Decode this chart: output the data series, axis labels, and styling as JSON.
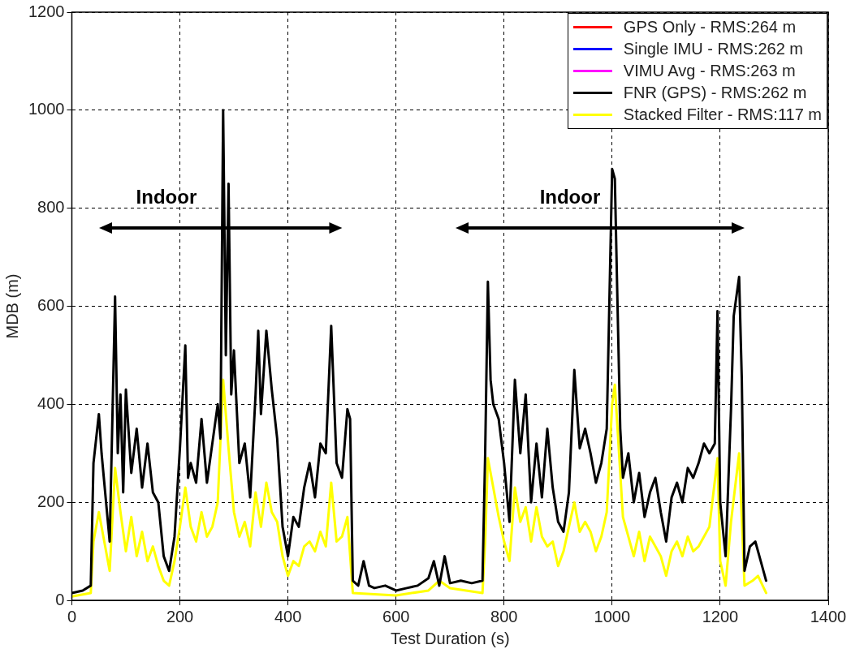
{
  "chart_data": {
    "type": "line",
    "xlabel": "Test Duration (s)",
    "ylabel": "MDB (m)",
    "xlim": [
      0,
      1400
    ],
    "xticks": [
      0,
      200,
      400,
      600,
      800,
      1000,
      1200,
      1400
    ],
    "ylim": [
      0,
      1200
    ],
    "yticks": [
      0,
      200,
      400,
      600,
      800,
      1000,
      1200
    ],
    "grid": true,
    "legend": "top right",
    "line_style": "solid",
    "marker": "none",
    "annotations": [
      "Indoor",
      "Indoor"
    ],
    "series": [
      {
        "name": "GPS Only - RMS:264 m",
        "color": "#ff0000"
      },
      {
        "name": "Single IMU - RMS:262 m",
        "color": "#0000ff"
      },
      {
        "name": "VIMU Avg - RMS:263 m",
        "color": "#ff00ff"
      },
      {
        "name": "FNR (GPS) - RMS:262 m",
        "color": "#000000",
        "x": [
          0,
          20,
          35,
          40,
          50,
          55,
          65,
          70,
          80,
          85,
          90,
          95,
          100,
          110,
          120,
          130,
          140,
          150,
          160,
          170,
          180,
          190,
          200,
          210,
          215,
          220,
          230,
          240,
          250,
          260,
          270,
          275,
          280,
          285,
          290,
          295,
          300,
          310,
          320,
          330,
          340,
          345,
          350,
          360,
          370,
          380,
          390,
          400,
          410,
          420,
          430,
          440,
          450,
          460,
          470,
          480,
          490,
          500,
          510,
          515,
          520,
          530,
          540,
          550,
          560,
          580,
          600,
          620,
          640,
          660,
          670,
          680,
          690,
          700,
          720,
          740,
          760,
          765,
          770,
          775,
          780,
          790,
          800,
          810,
          820,
          830,
          840,
          850,
          860,
          870,
          880,
          890,
          900,
          910,
          920,
          930,
          940,
          950,
          960,
          970,
          980,
          990,
          1000,
          1005,
          1010,
          1015,
          1020,
          1030,
          1040,
          1050,
          1060,
          1070,
          1080,
          1090,
          1100,
          1110,
          1120,
          1130,
          1140,
          1150,
          1160,
          1170,
          1180,
          1190,
          1195,
          1200,
          1210,
          1220,
          1225,
          1235,
          1240,
          1245,
          1255,
          1265,
          1275,
          1285
        ],
        "values": [
          15,
          20,
          30,
          280,
          380,
          300,
          180,
          120,
          620,
          300,
          420,
          220,
          430,
          260,
          350,
          230,
          320,
          220,
          200,
          90,
          60,
          130,
          310,
          520,
          250,
          280,
          240,
          370,
          240,
          320,
          400,
          330,
          1000,
          500,
          850,
          420,
          510,
          280,
          320,
          210,
          420,
          550,
          380,
          550,
          430,
          330,
          150,
          90,
          170,
          150,
          230,
          280,
          210,
          320,
          300,
          560,
          280,
          250,
          390,
          370,
          40,
          30,
          80,
          30,
          25,
          30,
          20,
          25,
          30,
          45,
          80,
          30,
          90,
          35,
          40,
          35,
          40,
          300,
          650,
          450,
          400,
          370,
          280,
          160,
          450,
          300,
          420,
          200,
          320,
          210,
          350,
          230,
          160,
          140,
          220,
          470,
          310,
          350,
          300,
          240,
          280,
          350,
          880,
          860,
          600,
          350,
          250,
          300,
          200,
          260,
          170,
          220,
          250,
          180,
          120,
          210,
          240,
          200,
          270,
          250,
          280,
          320,
          300,
          320,
          590,
          200,
          90,
          390,
          580,
          660,
          450,
          60,
          110,
          120,
          80,
          40
        ]
      },
      {
        "name": "Stacked Filter - RMS:117 m",
        "color": "#ffff00",
        "x": [
          0,
          35,
          40,
          50,
          60,
          70,
          80,
          90,
          100,
          110,
          120,
          130,
          140,
          150,
          160,
          170,
          180,
          190,
          200,
          210,
          220,
          230,
          240,
          250,
          260,
          270,
          280,
          290,
          300,
          310,
          320,
          330,
          340,
          350,
          360,
          370,
          380,
          390,
          400,
          410,
          420,
          430,
          440,
          450,
          460,
          470,
          480,
          490,
          500,
          510,
          520,
          600,
          660,
          680,
          700,
          760,
          765,
          770,
          780,
          790,
          800,
          810,
          820,
          830,
          840,
          850,
          860,
          870,
          880,
          890,
          900,
          910,
          920,
          930,
          940,
          950,
          960,
          970,
          980,
          990,
          1000,
          1005,
          1010,
          1020,
          1030,
          1040,
          1050,
          1060,
          1070,
          1080,
          1090,
          1100,
          1110,
          1120,
          1130,
          1140,
          1150,
          1160,
          1170,
          1180,
          1195,
          1200,
          1210,
          1220,
          1235,
          1245,
          1260,
          1270,
          1285
        ],
        "values": [
          8,
          15,
          120,
          180,
          120,
          60,
          270,
          180,
          100,
          170,
          90,
          140,
          80,
          110,
          70,
          40,
          30,
          80,
          150,
          230,
          150,
          120,
          180,
          130,
          150,
          200,
          450,
          310,
          180,
          130,
          160,
          110,
          220,
          150,
          240,
          180,
          160,
          90,
          50,
          80,
          70,
          110,
          120,
          100,
          140,
          110,
          240,
          120,
          130,
          170,
          15,
          10,
          20,
          40,
          25,
          15,
          120,
          290,
          230,
          170,
          120,
          80,
          230,
          160,
          190,
          120,
          190,
          130,
          110,
          120,
          70,
          100,
          150,
          200,
          140,
          160,
          140,
          100,
          130,
          180,
          400,
          440,
          350,
          170,
          130,
          90,
          140,
          80,
          130,
          110,
          90,
          50,
          100,
          120,
          90,
          130,
          100,
          110,
          130,
          150,
          290,
          80,
          30,
          160,
          300,
          30,
          40,
          50,
          15
        ]
      }
    ]
  }
}
